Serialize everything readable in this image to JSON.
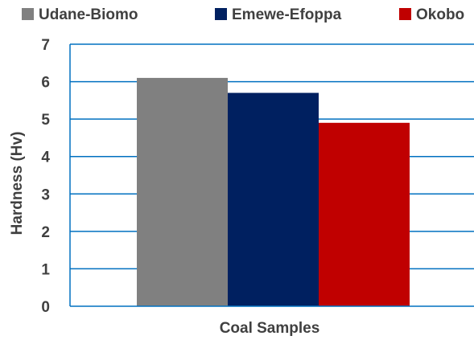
{
  "chart_data": {
    "type": "bar",
    "categories": [
      "Coal Samples"
    ],
    "series": [
      {
        "name": "Udane-Biomo",
        "values": [
          6.1
        ],
        "color": "#808080"
      },
      {
        "name": "Emewe-Efoppa",
        "values": [
          5.7
        ],
        "color": "#002060"
      },
      {
        "name": "Okobo",
        "values": [
          4.9
        ],
        "color": "#C00000"
      }
    ],
    "xlabel": "Coal Samples",
    "ylabel": "Hardness  (Hv)",
    "ylim": [
      0,
      7
    ],
    "yticks": [
      "0",
      "1",
      "2",
      "3",
      "4",
      "5",
      "6",
      "7"
    ],
    "grid": true,
    "gridline_color": "#0070C0",
    "legend_position": "top"
  }
}
